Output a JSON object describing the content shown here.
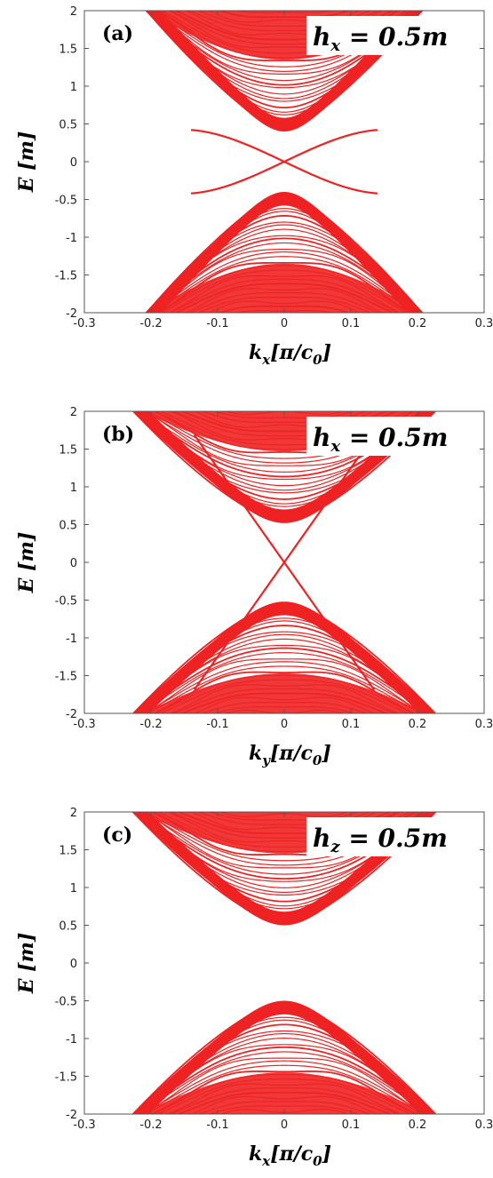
{
  "chart_data": [
    {
      "type": "line",
      "panel": "(a)",
      "annotation": "h_x = 0.5m",
      "annotation_parts": {
        "base": "h",
        "sub": "x",
        "rest": " = 0.5m"
      },
      "xlabel_parts": {
        "base": "k",
        "sub": "x",
        "mid": "[π/c",
        "sub2": "0",
        "end": "]"
      },
      "ylabel": "E [m]",
      "xlim": [
        -0.3,
        0.3
      ],
      "ylim": [
        -2,
        2
      ],
      "x_ticks": [
        "-0.3",
        "-0.2",
        "-0.1",
        "0",
        "0.1",
        "0.2",
        "0.3"
      ],
      "y_ticks": [
        "2",
        "1.5",
        "1",
        "0.5",
        "0",
        "-0.5",
        "-1",
        "-1.5",
        "-2"
      ],
      "series_color": "#ee2222",
      "bulk_gap": 0.4,
      "velocity": 9.5,
      "curvature": 2.0,
      "surface_crossing": {
        "k": 0,
        "E": 0,
        "slope": 5,
        "cubic": 0.55,
        "merge_k": 0.14,
        "merge_E": 0.42
      }
    },
    {
      "type": "line",
      "panel": "(b)",
      "annotation": "h_x = 0.5m",
      "annotation_parts": {
        "base": "h",
        "sub": "x",
        "rest": " = 0.5m"
      },
      "xlabel_parts": {
        "base": "k",
        "sub": "y",
        "mid": "[π/c",
        "sub2": "0",
        "end": "]"
      },
      "ylabel": "E [m]",
      "xlim": [
        -0.3,
        0.3
      ],
      "ylim": [
        -2,
        2
      ],
      "x_ticks": [
        "-0.3",
        "-0.2",
        "-0.1",
        "0",
        "0.1",
        "0.2",
        "0.3"
      ],
      "y_ticks": [
        "2",
        "1.5",
        "1",
        "0.5",
        "0",
        "-0.5",
        "-1",
        "-1.5",
        "-2"
      ],
      "series_color": "#ee2222",
      "bulk_gap": 0.52,
      "velocity": 8.5,
      "curvature": 1.2,
      "surface_crossing": {
        "k": 0,
        "E": 0,
        "slope": 12.5,
        "cubic": 0,
        "merge_k": 0.135,
        "merge_E": 1.65
      }
    },
    {
      "type": "line",
      "panel": "(c)",
      "annotation": "h_z = 0.5m",
      "annotation_parts": {
        "base": "h",
        "sub": "z",
        "rest": " = 0.5m"
      },
      "xlabel_parts": {
        "base": "k",
        "sub": "x",
        "mid": "[π/c",
        "sub2": "0",
        "end": "]"
      },
      "ylabel": "E [m]",
      "xlim": [
        -0.3,
        0.3
      ],
      "ylim": [
        -2,
        2
      ],
      "x_ticks": [
        "-0.3",
        "-0.2",
        "-0.1",
        "0",
        "0.1",
        "0.2",
        "0.3"
      ],
      "y_ticks": [
        "2",
        "1.5",
        "1",
        "0.5",
        "0",
        "-0.5",
        "-1",
        "-1.5",
        "-2"
      ],
      "series_color": "#ee2222",
      "bulk_gap": 0.5,
      "velocity": 8.5,
      "curvature": 1.2,
      "surface_crossing": null
    }
  ]
}
